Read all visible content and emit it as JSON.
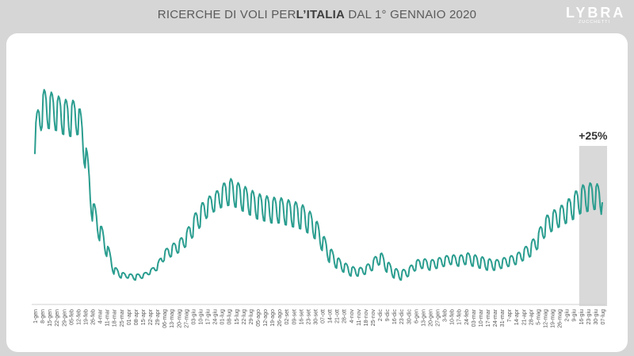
{
  "header": {
    "title_prefix": "RICERCHE DI VOLI PER",
    "title_bold": "L’ITALIA",
    "title_suffix": " DAL 1° GENNAIO 2020"
  },
  "logo": {
    "main": "LYBRA",
    "sub": "ZUCCHETTI"
  },
  "colors": {
    "line": "#2a9d8f",
    "highlight": "#d9d9d9",
    "background": "#d6d6d6",
    "card": "#ffffff"
  },
  "chart_data": {
    "type": "line",
    "title": "RICERCHE DI VOLI PER L’ITALIA DAL 1° GENNAIO 2020",
    "xlabel": "",
    "ylabel": "",
    "grid": false,
    "x_tick_labels": [
      "1-gen",
      "8-gen",
      "15-gen",
      "22-gen",
      "29-gen",
      "05-feb",
      "12-feb",
      "19-feb",
      "26-feb",
      "4-mar",
      "11-mar",
      "18-mar",
      "25-mar",
      "01-apr",
      "08-apr",
      "15-apr",
      "22-apr",
      "29-apr",
      "06-mag",
      "13-mag",
      "20-mag",
      "27-mag",
      "03-giu",
      "10-giu",
      "17-giu",
      "24-giu",
      "01-lug",
      "08-lug",
      "15-lug",
      "22-lug",
      "29-lug",
      "05-ago",
      "12-ago",
      "19-ago",
      "26-ago",
      "02-set",
      "09-set",
      "16-set",
      "23-set",
      "30-set",
      "07-ott",
      "14-ott",
      "21-ott",
      "28-ott",
      "4-nov",
      "11-nov",
      "18-nov",
      "25-nov",
      "2-dic",
      "9-dic",
      "16-dic",
      "23-dic",
      "30-dic",
      "6-gen",
      "13-gen",
      "20-gen",
      "27-gen",
      "3-feb",
      "10-feb",
      "17-feb",
      "24-feb",
      "03-mar",
      "10-mar",
      "17-mar",
      "24-mar",
      "31-mar",
      "7-apr",
      "14-apr",
      "21-apr",
      "28-apr",
      "5-mag",
      "12-mag",
      "19-mag",
      "26-mag",
      "2-giu",
      "9-giu",
      "16-giu",
      "23-giu",
      "30-giu",
      "07-lug"
    ],
    "weekly_series": {
      "name": "",
      "high": [
        78,
        95,
        94,
        92,
        90,
        89,
        90,
        72,
        40,
        28,
        18,
        5,
        2,
        1,
        1,
        1,
        3,
        6,
        13,
        16,
        18,
        22,
        30,
        36,
        40,
        42,
        46,
        50,
        48,
        46,
        44,
        42,
        41,
        40,
        40,
        39,
        38,
        37,
        34,
        30,
        22,
        15,
        10,
        7,
        5,
        4,
        5,
        8,
        13,
        8,
        4,
        3,
        4,
        8,
        9,
        8,
        9,
        10,
        11,
        10,
        12,
        11,
        10,
        9,
        8,
        9,
        10,
        11,
        14,
        17,
        22,
        30,
        33,
        35,
        38,
        42,
        46,
        47,
        48,
        44
      ],
      "low": [
        62,
        76,
        75,
        74,
        72,
        71,
        72,
        55,
        28,
        18,
        10,
        1,
        -1,
        -1,
        -2,
        -1,
        1,
        3,
        8,
        10,
        12,
        15,
        20,
        25,
        30,
        33,
        35,
        36,
        35,
        33,
        31,
        29,
        28,
        27,
        27,
        26,
        25,
        24,
        22,
        19,
        13,
        7,
        4,
        2,
        0,
        0,
        1,
        3,
        6,
        2,
        -1,
        -2,
        0,
        3,
        4,
        3,
        4,
        5,
        6,
        5,
        6,
        5,
        4,
        3,
        3,
        4,
        5,
        6,
        8,
        10,
        14,
        20,
        23,
        25,
        27,
        29,
        32,
        33,
        34,
        31
      ]
    },
    "y_range": [
      -8,
      100
    ],
    "annotation": {
      "label": "+25%",
      "from_week": 76,
      "to_week": 79
    }
  }
}
